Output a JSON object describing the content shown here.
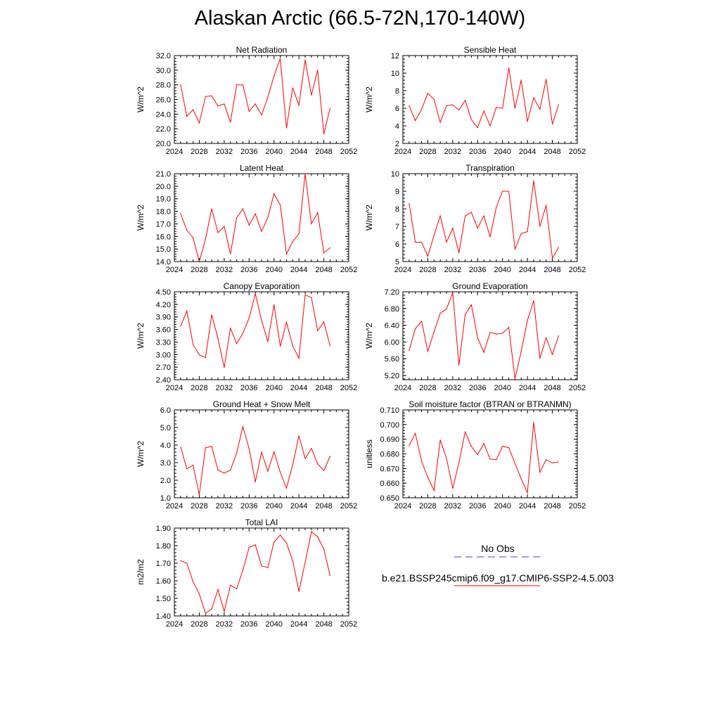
{
  "title": "Alaskan Arctic (66.5-72N,170-140W)",
  "legend": {
    "obs_label": "No Obs",
    "run_label": "b.e21.BSSP245cmip6.f09_g17.CMIP6-SSP2-4.5.003",
    "obs_color": "#4040c0",
    "run_color": "#ff0000"
  },
  "chart_data": [
    {
      "type": "line",
      "title": "Net Radiation",
      "ylabel": "W/m^2",
      "xlim": [
        2024,
        2052
      ],
      "xticks": [
        "2024",
        "2028",
        "2032",
        "2036",
        "2040",
        "2044",
        "2048",
        "2052"
      ],
      "ylim": [
        20.0,
        32.0
      ],
      "yticks": [
        "20.0",
        "22.0",
        "24.0",
        "26.0",
        "28.0",
        "30.0",
        "32.0"
      ],
      "series": [
        {
          "color": "#ff0000",
          "x": [
            2025,
            2026,
            2027,
            2028,
            2029,
            2030,
            2031,
            2032,
            2033,
            2034,
            2035,
            2036,
            2037,
            2038,
            2039,
            2040,
            2041,
            2042,
            2043,
            2044,
            2045,
            2046,
            2047,
            2048,
            2049
          ],
          "values": [
            28.0,
            23.7,
            24.6,
            22.8,
            26.4,
            26.5,
            25.1,
            25.4,
            22.9,
            28.0,
            28.0,
            24.4,
            25.4,
            23.9,
            26.3,
            29.2,
            31.6,
            22.1,
            27.6,
            25.2,
            31.4,
            26.6,
            30.0,
            21.3,
            24.8
          ]
        }
      ]
    },
    {
      "type": "line",
      "title": "Sensible Heat",
      "ylabel": "W/m^2",
      "xlim": [
        2024,
        2052
      ],
      "xticks": [
        "2024",
        "2028",
        "2032",
        "2036",
        "2040",
        "2044",
        "2048",
        "2052"
      ],
      "ylim": [
        2,
        12
      ],
      "yticks": [
        "2",
        "4",
        "6",
        "8",
        "10",
        "12"
      ],
      "series": [
        {
          "color": "#ff0000",
          "x": [
            2025,
            2026,
            2027,
            2028,
            2029,
            2030,
            2031,
            2032,
            2033,
            2034,
            2035,
            2036,
            2037,
            2038,
            2039,
            2040,
            2041,
            2042,
            2043,
            2044,
            2045,
            2046,
            2047,
            2048,
            2049
          ],
          "values": [
            6.3,
            4.6,
            5.9,
            7.7,
            7.0,
            4.4,
            6.3,
            6.4,
            5.8,
            6.9,
            4.7,
            3.8,
            5.7,
            4.0,
            6.1,
            6.0,
            10.6,
            6.0,
            9.2,
            4.5,
            7.2,
            5.9,
            9.3,
            4.2,
            6.4
          ]
        }
      ]
    },
    {
      "type": "line",
      "title": "Latent Heat",
      "ylabel": "W/m^2",
      "xlim": [
        2024,
        2052
      ],
      "xticks": [
        "2024",
        "2028",
        "2032",
        "2036",
        "2040",
        "2044",
        "2048",
        "2052"
      ],
      "ylim": [
        14.0,
        21.0
      ],
      "yticks": [
        "14.0",
        "15.0",
        "16.0",
        "17.0",
        "18.0",
        "19.0",
        "20.0",
        "21.0"
      ],
      "series": [
        {
          "color": "#ff0000",
          "x": [
            2025,
            2026,
            2027,
            2028,
            2029,
            2030,
            2031,
            2032,
            2033,
            2034,
            2035,
            2036,
            2037,
            2038,
            2039,
            2040,
            2041,
            2042,
            2043,
            2044,
            2045,
            2046,
            2047,
            2048,
            2049
          ],
          "values": [
            17.8,
            16.5,
            15.9,
            14.0,
            15.8,
            18.2,
            16.3,
            16.8,
            14.6,
            17.5,
            18.2,
            16.9,
            17.8,
            16.4,
            17.5,
            19.4,
            18.5,
            14.6,
            15.6,
            16.2,
            21.0,
            17.0,
            17.9,
            14.7,
            15.1
          ]
        }
      ]
    },
    {
      "type": "line",
      "title": "Transpiration",
      "ylabel": "W/m^2",
      "xlim": [
        2024,
        2052
      ],
      "xticks": [
        "2024",
        "2028",
        "2032",
        "2036",
        "2040",
        "2044",
        "2048",
        "2052"
      ],
      "ylim": [
        5,
        10
      ],
      "yticks": [
        "5",
        "6",
        "7",
        "8",
        "9",
        "10"
      ],
      "series": [
        {
          "color": "#ff0000",
          "x": [
            2025,
            2026,
            2027,
            2028,
            2029,
            2030,
            2031,
            2032,
            2033,
            2034,
            2035,
            2036,
            2037,
            2038,
            2039,
            2040,
            2041,
            2042,
            2043,
            2044,
            2045,
            2046,
            2047,
            2048,
            2049
          ],
          "values": [
            8.3,
            6.1,
            6.1,
            5.3,
            6.5,
            7.6,
            6.1,
            6.9,
            5.5,
            7.6,
            7.8,
            6.9,
            7.6,
            6.4,
            8.1,
            9.0,
            9.0,
            5.7,
            6.6,
            6.7,
            9.6,
            7.0,
            8.2,
            5.2,
            5.8
          ]
        }
      ]
    },
    {
      "type": "line",
      "title": "Canopy Evaporation",
      "ylabel": "W/m^2",
      "xlim": [
        2024,
        2052
      ],
      "xticks": [
        "2024",
        "2028",
        "2032",
        "2036",
        "2040",
        "2044",
        "2048",
        "2052"
      ],
      "ylim": [
        2.4,
        4.5
      ],
      "yticks": [
        "2.40",
        "2.70",
        "3.00",
        "3.30",
        "3.60",
        "3.90",
        "4.20",
        "4.50"
      ],
      "series": [
        {
          "color": "#ff0000",
          "x": [
            2025,
            2026,
            2027,
            2028,
            2029,
            2030,
            2031,
            2032,
            2033,
            2034,
            2035,
            2036,
            2037,
            2038,
            2039,
            2040,
            2041,
            2042,
            2043,
            2044,
            2045,
            2046,
            2047,
            2048,
            2049
          ],
          "values": [
            3.68,
            4.04,
            3.24,
            2.99,
            2.93,
            3.95,
            3.39,
            2.69,
            3.63,
            3.26,
            3.51,
            3.87,
            4.46,
            3.82,
            3.31,
            4.19,
            3.2,
            3.77,
            3.21,
            2.91,
            4.43,
            4.36,
            3.57,
            3.78,
            3.21
          ]
        }
      ]
    },
    {
      "type": "line",
      "title": "Ground Evaporation",
      "ylabel": "W/m^2",
      "xlim": [
        2024,
        2052
      ],
      "xticks": [
        "2024",
        "2028",
        "2032",
        "2036",
        "2040",
        "2044",
        "2048",
        "2052"
      ],
      "ylim": [
        5.1,
        7.2
      ],
      "yticks": [
        "5.20",
        "5.60",
        "6.00",
        "6.40",
        "6.80",
        "7.20"
      ],
      "series": [
        {
          "color": "#ff0000",
          "x": [
            2025,
            2026,
            2027,
            2028,
            2029,
            2030,
            2031,
            2032,
            2033,
            2034,
            2035,
            2036,
            2037,
            2038,
            2039,
            2040,
            2041,
            2042,
            2043,
            2044,
            2045,
            2046,
            2047,
            2048,
            2049
          ],
          "values": [
            5.8,
            6.32,
            6.5,
            5.78,
            6.24,
            6.69,
            6.79,
            7.18,
            5.45,
            6.66,
            6.89,
            6.1,
            5.75,
            6.23,
            6.19,
            6.21,
            6.35,
            5.12,
            5.78,
            6.52,
            6.99,
            5.61,
            6.1,
            5.7,
            6.15
          ]
        }
      ]
    },
    {
      "type": "line",
      "title": "Ground Heat + Snow Melt",
      "ylabel": "W/m^2",
      "xlim": [
        2024,
        2052
      ],
      "xticks": [
        "2024",
        "2028",
        "2032",
        "2036",
        "2040",
        "2044",
        "2048",
        "2052"
      ],
      "ylim": [
        1.0,
        6.0
      ],
      "yticks": [
        "1.0",
        "2.0",
        "3.0",
        "4.0",
        "5.0",
        "6.0"
      ],
      "series": [
        {
          "color": "#ff0000",
          "x": [
            2025,
            2026,
            2027,
            2028,
            2029,
            2030,
            2031,
            2032,
            2033,
            2034,
            2035,
            2036,
            2037,
            2038,
            2039,
            2040,
            2041,
            2042,
            2043,
            2044,
            2045,
            2046,
            2047,
            2048,
            2049
          ],
          "values": [
            3.9,
            2.65,
            2.86,
            1.17,
            3.85,
            3.92,
            2.58,
            2.4,
            2.58,
            3.55,
            5.05,
            3.8,
            1.9,
            3.6,
            2.5,
            3.62,
            2.45,
            1.55,
            2.88,
            4.52,
            3.24,
            3.81,
            2.94,
            2.55,
            3.36
          ]
        }
      ]
    },
    {
      "type": "line",
      "title": "Soil moisture factor (BTRAN or BTRANMN)",
      "ylabel": "unitless",
      "xlim": [
        2024,
        2052
      ],
      "xticks": [
        "2024",
        "2028",
        "2032",
        "2036",
        "2040",
        "2044",
        "2048",
        "2052"
      ],
      "ylim": [
        0.65,
        0.71
      ],
      "yticks": [
        "0.650",
        "0.660",
        "0.670",
        "0.680",
        "0.690",
        "0.700",
        "0.710"
      ],
      "series": [
        {
          "color": "#ff0000",
          "x": [
            2025,
            2026,
            2027,
            2028,
            2029,
            2030,
            2031,
            2032,
            2033,
            2034,
            2035,
            2036,
            2037,
            2038,
            2039,
            2040,
            2041,
            2042,
            2043,
            2044,
            2045,
            2046,
            2047,
            2048,
            2049
          ],
          "values": [
            0.6855,
            0.694,
            0.675,
            0.664,
            0.655,
            0.6895,
            0.677,
            0.6565,
            0.674,
            0.695,
            0.685,
            0.6795,
            0.687,
            0.6765,
            0.676,
            0.6852,
            0.6842,
            0.6735,
            0.663,
            0.6535,
            0.7015,
            0.6675,
            0.676,
            0.6738,
            0.6745
          ]
        }
      ]
    },
    {
      "type": "line",
      "title": "Total LAI",
      "ylabel": "m2/m2",
      "xlim": [
        2024,
        2052
      ],
      "xticks": [
        "2024",
        "2028",
        "2032",
        "2036",
        "2040",
        "2044",
        "2048",
        "2052"
      ],
      "ylim": [
        1.4,
        1.9
      ],
      "yticks": [
        "1.40",
        "1.50",
        "1.60",
        "1.70",
        "1.80",
        "1.90"
      ],
      "series": [
        {
          "color": "#ff0000",
          "x": [
            2025,
            2026,
            2027,
            2028,
            2029,
            2030,
            2031,
            2032,
            2033,
            2034,
            2035,
            2036,
            2037,
            2038,
            2039,
            2040,
            2041,
            2042,
            2043,
            2044,
            2045,
            2046,
            2047,
            2048,
            2049
          ],
          "values": [
            1.715,
            1.7,
            1.595,
            1.525,
            1.415,
            1.44,
            1.55,
            1.425,
            1.575,
            1.555,
            1.66,
            1.79,
            1.805,
            1.685,
            1.675,
            1.82,
            1.86,
            1.815,
            1.715,
            1.54,
            1.705,
            1.88,
            1.85,
            1.78,
            1.63
          ]
        }
      ]
    }
  ]
}
